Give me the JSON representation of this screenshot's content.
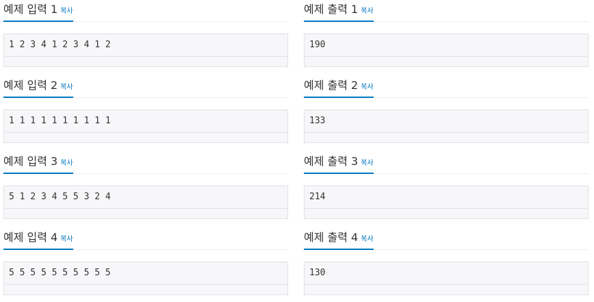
{
  "copy_label": "복사",
  "inputs": [
    {
      "title": "예제 입력 1",
      "value": "1 2 3 4 1 2 3 4 1 2"
    },
    {
      "title": "예제 입력 2",
      "value": "1 1 1 1 1 1 1 1 1 1"
    },
    {
      "title": "예제 입력 3",
      "value": "5 1 2 3 4 5 5 3 2 4"
    },
    {
      "title": "예제 입력 4",
      "value": "5 5 5 5 5 5 5 5 5 5"
    }
  ],
  "outputs": [
    {
      "title": "예제 출력 1",
      "value": "190"
    },
    {
      "title": "예제 출력 2",
      "value": "133"
    },
    {
      "title": "예제 출력 3",
      "value": "214"
    },
    {
      "title": "예제 출력 4",
      "value": "130"
    }
  ]
}
